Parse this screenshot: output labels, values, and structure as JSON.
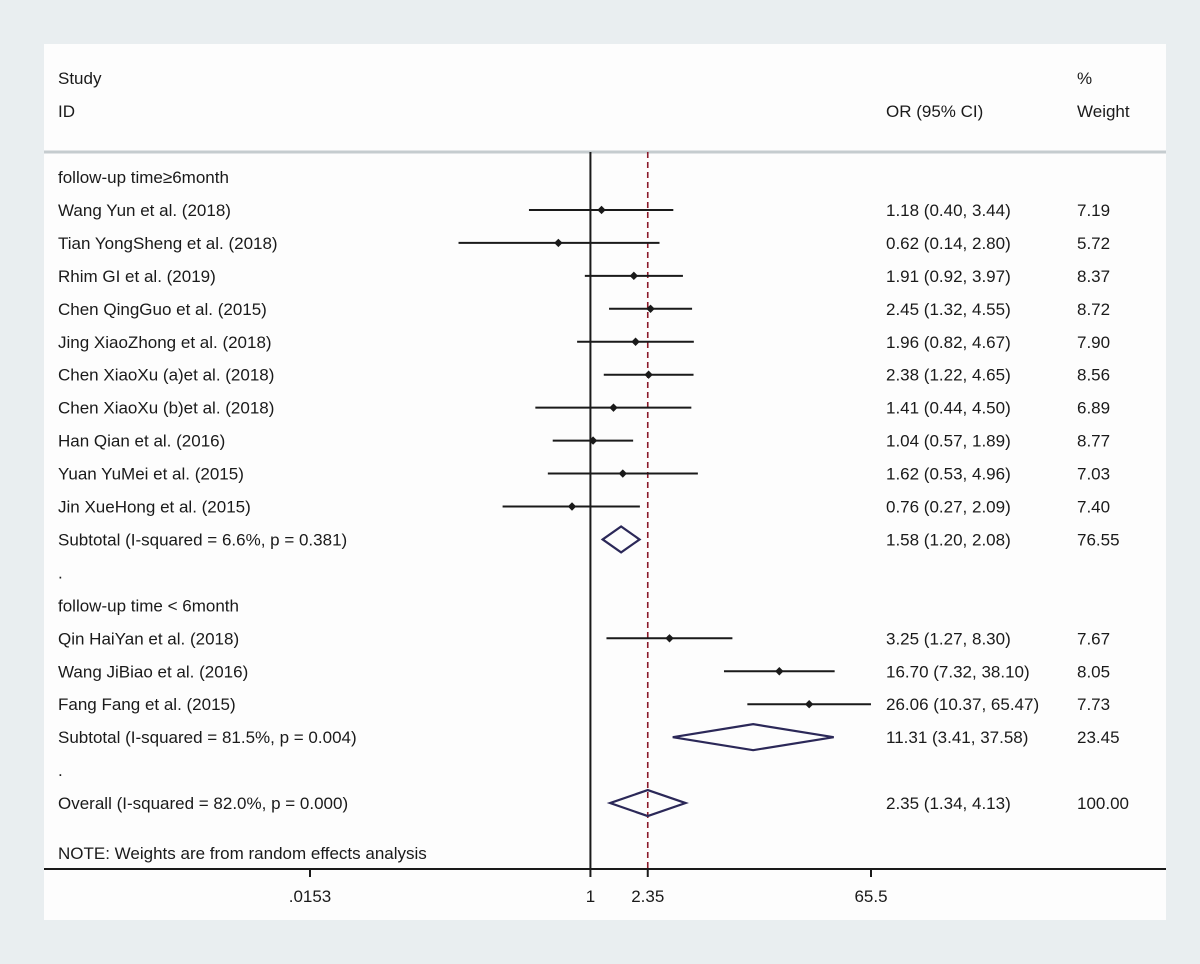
{
  "chart_data": {
    "type": "forest",
    "header": {
      "study_label_line1": "Study",
      "study_label_line2": "ID",
      "effect_label": "OR (95% CI)",
      "weight_label_line1": "%",
      "weight_label_line2": "Weight"
    },
    "x_scale": "log",
    "xlim": [
      0.0153,
      65.5
    ],
    "x_ticks": [
      {
        "value": 0.0153,
        "label": ".0153"
      },
      {
        "value": 1,
        "label": "1"
      },
      {
        "value": 2.35,
        "label": "2.35"
      },
      {
        "value": 65.5,
        "label": "65.5"
      }
    ],
    "null_line": 1,
    "pooled_line": 2.35,
    "rows": [
      {
        "kind": "group",
        "label": "follow-up time≥6month"
      },
      {
        "kind": "study",
        "label": "Wang Yun et al. (2018)",
        "or": 1.18,
        "lo": 0.4,
        "hi": 3.44,
        "ci_text": "1.18 (0.40, 3.44)",
        "weight": "7.19"
      },
      {
        "kind": "study",
        "label": "Tian YongSheng et al. (2018)",
        "or": 0.62,
        "lo": 0.14,
        "hi": 2.8,
        "ci_text": "0.62 (0.14, 2.80)",
        "weight": "5.72"
      },
      {
        "kind": "study",
        "label": "Rhim GI et al. (2019)",
        "or": 1.91,
        "lo": 0.92,
        "hi": 3.97,
        "ci_text": "1.91 (0.92, 3.97)",
        "weight": "8.37"
      },
      {
        "kind": "study",
        "label": "Chen QingGuo et al. (2015)",
        "or": 2.45,
        "lo": 1.32,
        "hi": 4.55,
        "ci_text": "2.45 (1.32, 4.55)",
        "weight": "8.72"
      },
      {
        "kind": "study",
        "label": "Jing XiaoZhong et al. (2018)",
        "or": 1.96,
        "lo": 0.82,
        "hi": 4.67,
        "ci_text": "1.96 (0.82, 4.67)",
        "weight": "7.90"
      },
      {
        "kind": "study",
        "label": "Chen XiaoXu (a)et al. (2018)",
        "or": 2.38,
        "lo": 1.22,
        "hi": 4.65,
        "ci_text": "2.38 (1.22, 4.65)",
        "weight": "8.56"
      },
      {
        "kind": "study",
        "label": "Chen XiaoXu (b)et al. (2018)",
        "or": 1.41,
        "lo": 0.44,
        "hi": 4.5,
        "ci_text": "1.41 (0.44, 4.50)",
        "weight": "6.89"
      },
      {
        "kind": "study",
        "label": "Han Qian et al. (2016)",
        "or": 1.04,
        "lo": 0.57,
        "hi": 1.89,
        "ci_text": "1.04 (0.57, 1.89)",
        "weight": "8.77"
      },
      {
        "kind": "study",
        "label": "Yuan YuMei et al. (2015)",
        "or": 1.62,
        "lo": 0.53,
        "hi": 4.96,
        "ci_text": "1.62 (0.53, 4.96)",
        "weight": "7.03"
      },
      {
        "kind": "study",
        "label": "Jin XueHong et al. (2015)",
        "or": 0.76,
        "lo": 0.27,
        "hi": 2.09,
        "ci_text": "0.76 (0.27, 2.09)",
        "weight": "7.40"
      },
      {
        "kind": "subtotal",
        "label": "Subtotal  (I-squared = 6.6%, p = 0.381)",
        "or": 1.58,
        "lo": 1.2,
        "hi": 2.08,
        "ci_text": "1.58 (1.20, 2.08)",
        "weight": "76.55"
      },
      {
        "kind": "spacer",
        "label": "."
      },
      {
        "kind": "group",
        "label": "follow-up time < 6month"
      },
      {
        "kind": "study",
        "label": "Qin HaiYan et al. (2018)",
        "or": 3.25,
        "lo": 1.27,
        "hi": 8.3,
        "ci_text": "3.25 (1.27, 8.30)",
        "weight": "7.67"
      },
      {
        "kind": "study",
        "label": "Wang JiBiao et al. (2016)",
        "or": 16.7,
        "lo": 7.32,
        "hi": 38.1,
        "ci_text": "16.70 (7.32, 38.10)",
        "weight": "8.05"
      },
      {
        "kind": "study",
        "label": "Fang Fang et al. (2015)",
        "or": 26.06,
        "lo": 10.37,
        "hi": 65.47,
        "ci_text": "26.06 (10.37, 65.47)",
        "weight": "7.73"
      },
      {
        "kind": "subtotal",
        "label": "Subtotal  (I-squared = 81.5%, p = 0.004)",
        "or": 11.31,
        "lo": 3.41,
        "hi": 37.58,
        "ci_text": "11.31 (3.41, 37.58)",
        "weight": "23.45"
      },
      {
        "kind": "spacer",
        "label": "."
      },
      {
        "kind": "overall",
        "label": "Overall  (I-squared = 82.0%, p = 0.000)",
        "or": 2.35,
        "lo": 1.34,
        "hi": 4.13,
        "ci_text": "2.35 (1.34, 4.13)",
        "weight": "100.00"
      }
    ],
    "note": "NOTE: Weights are from random effects analysis",
    "colors": {
      "background": "#e9eef0",
      "panel": "#fdfdfd",
      "text": "#1a1a1a",
      "diamond": "#2b2858",
      "pooled_line": "#8b1a2a",
      "separator": "#c5cccf"
    }
  }
}
